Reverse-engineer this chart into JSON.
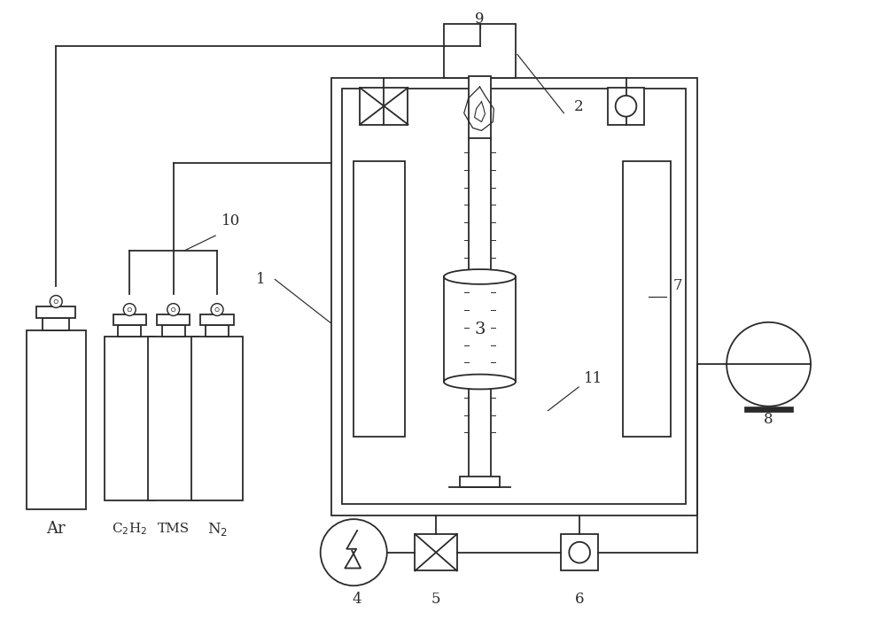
{
  "bg_color": "#ffffff",
  "line_color": "#2a2a2a",
  "lw": 1.3,
  "fig_width": 10.0,
  "fig_height": 7.0
}
